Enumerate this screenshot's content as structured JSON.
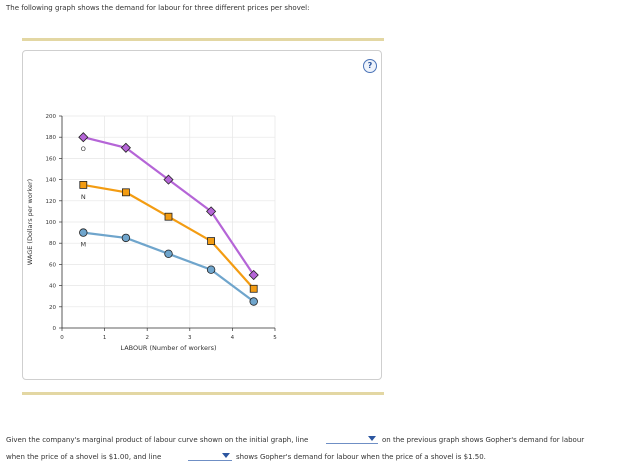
{
  "intro": "The following graph shows the demand for labour for three different prices per shovel:",
  "help_icon": "question-mark-icon",
  "colors": {
    "line_O": "#b565d7",
    "line_N": "#f39c12",
    "line_M": "#6fa5cc",
    "grid": "#e6e6e6"
  },
  "chart_data": {
    "type": "line",
    "xlabel": "LABOUR (Number of workers)",
    "ylabel": "WAGE (Dollars per worker)",
    "x_ticks": [
      "0",
      "1",
      "2",
      "3",
      "4",
      "5"
    ],
    "y_ticks": [
      "0",
      "20",
      "40",
      "60",
      "80",
      "100",
      "120",
      "140",
      "160",
      "180",
      "200"
    ],
    "xlim": [
      0,
      5
    ],
    "ylim": [
      0,
      200
    ],
    "grid": true,
    "x": [
      0.5,
      1.5,
      2.5,
      3.5,
      4.5
    ],
    "series": [
      {
        "name": "O",
        "marker": "diamond",
        "values": [
          180,
          170,
          140,
          110,
          50
        ]
      },
      {
        "name": "N",
        "marker": "square",
        "values": [
          135,
          128,
          105,
          82,
          37
        ]
      },
      {
        "name": "M",
        "marker": "circle",
        "values": [
          90,
          85,
          70,
          55,
          25
        ]
      }
    ]
  },
  "question": {
    "part1": "Given the company's marginal product of labour curve shown on the initial graph, line",
    "part2": "on the previous graph shows Gopher's demand for labour",
    "part3": "when the price of a shovel is $1.00, and line",
    "part4": "shows Gopher's demand for labour when the price of a shovel is $1.50."
  }
}
